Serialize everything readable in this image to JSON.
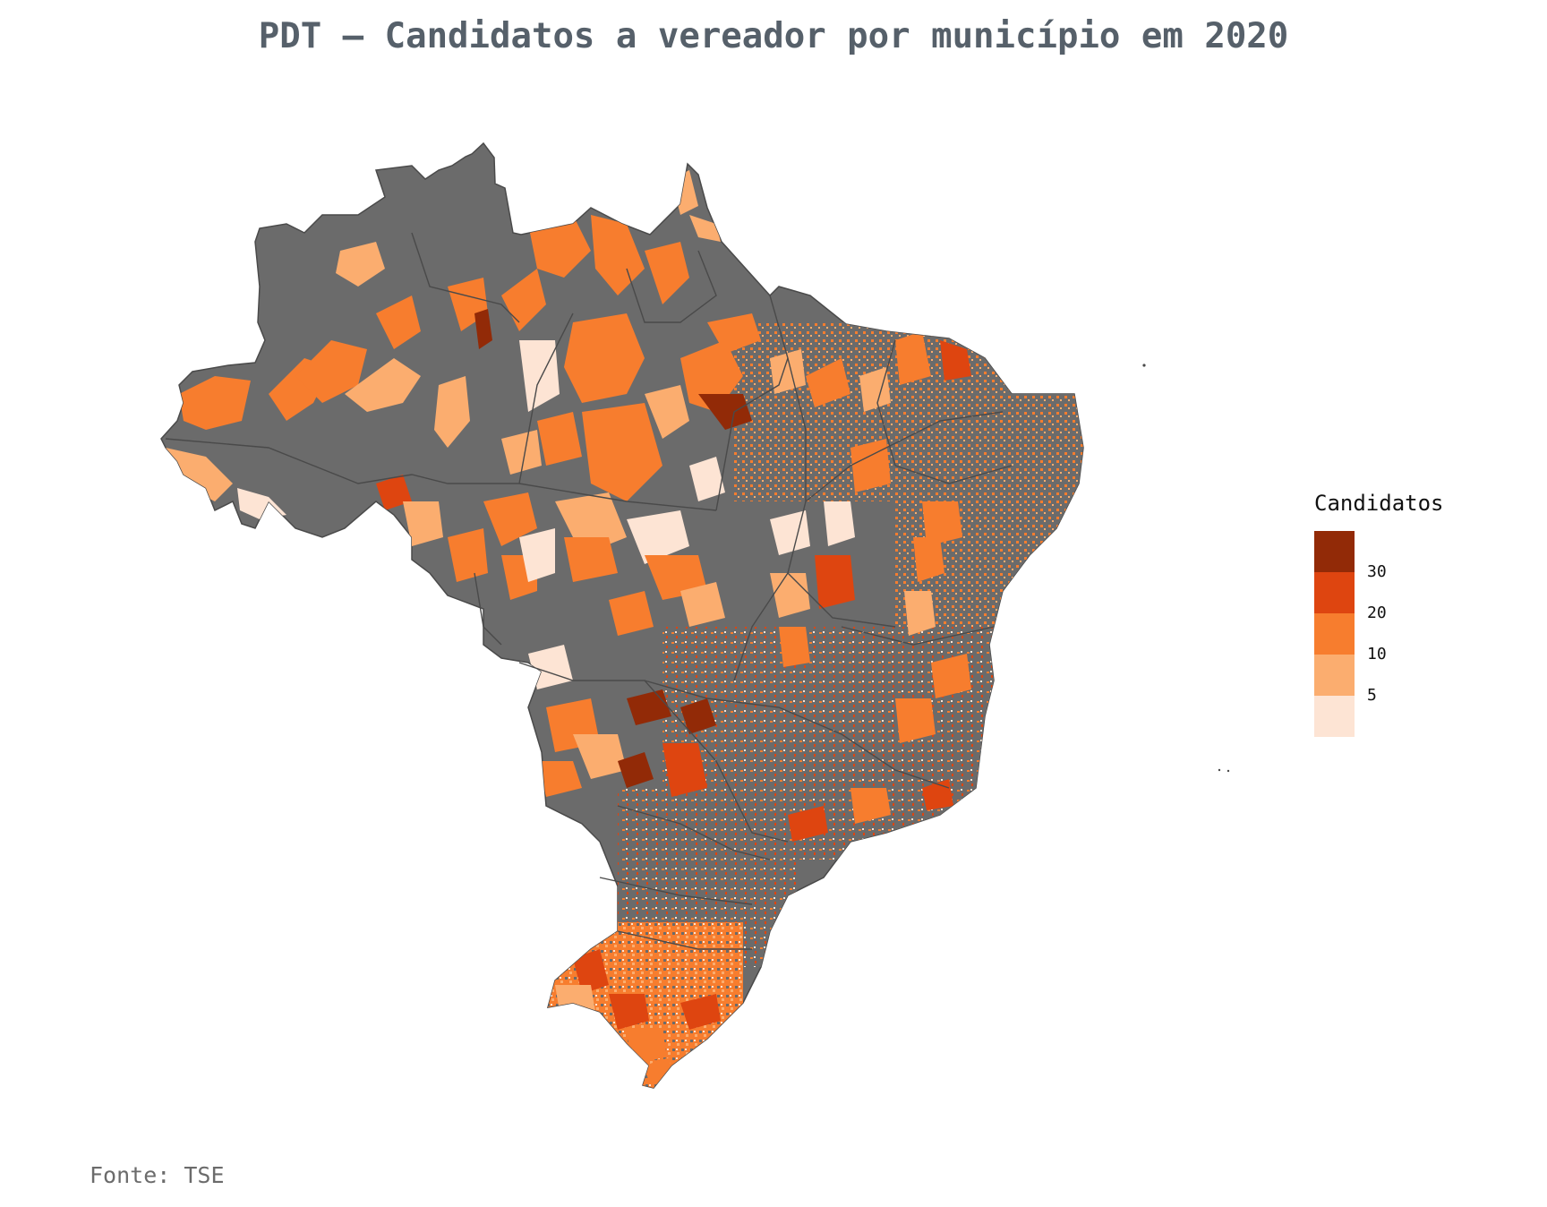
{
  "title": "PDT – Candidatos a vereador por município em 2020",
  "source": "Fonte: TSE",
  "legend": {
    "title": "Candidatos",
    "ticks": [
      "5",
      "10",
      "20",
      "30"
    ],
    "bins": [
      {
        "range": "<5",
        "color": "#fde4d4"
      },
      {
        "range": "5–10",
        "color": "#fbad6f"
      },
      {
        "range": "10–20",
        "color": "#f77d2e"
      },
      {
        "range": "20–30",
        "color": "#de4510"
      },
      {
        "range": ">30",
        "color": "#922a07"
      }
    ]
  },
  "colors": {
    "no_candidates": "#6b6b6b",
    "borders": "#4a4a4a"
  }
}
